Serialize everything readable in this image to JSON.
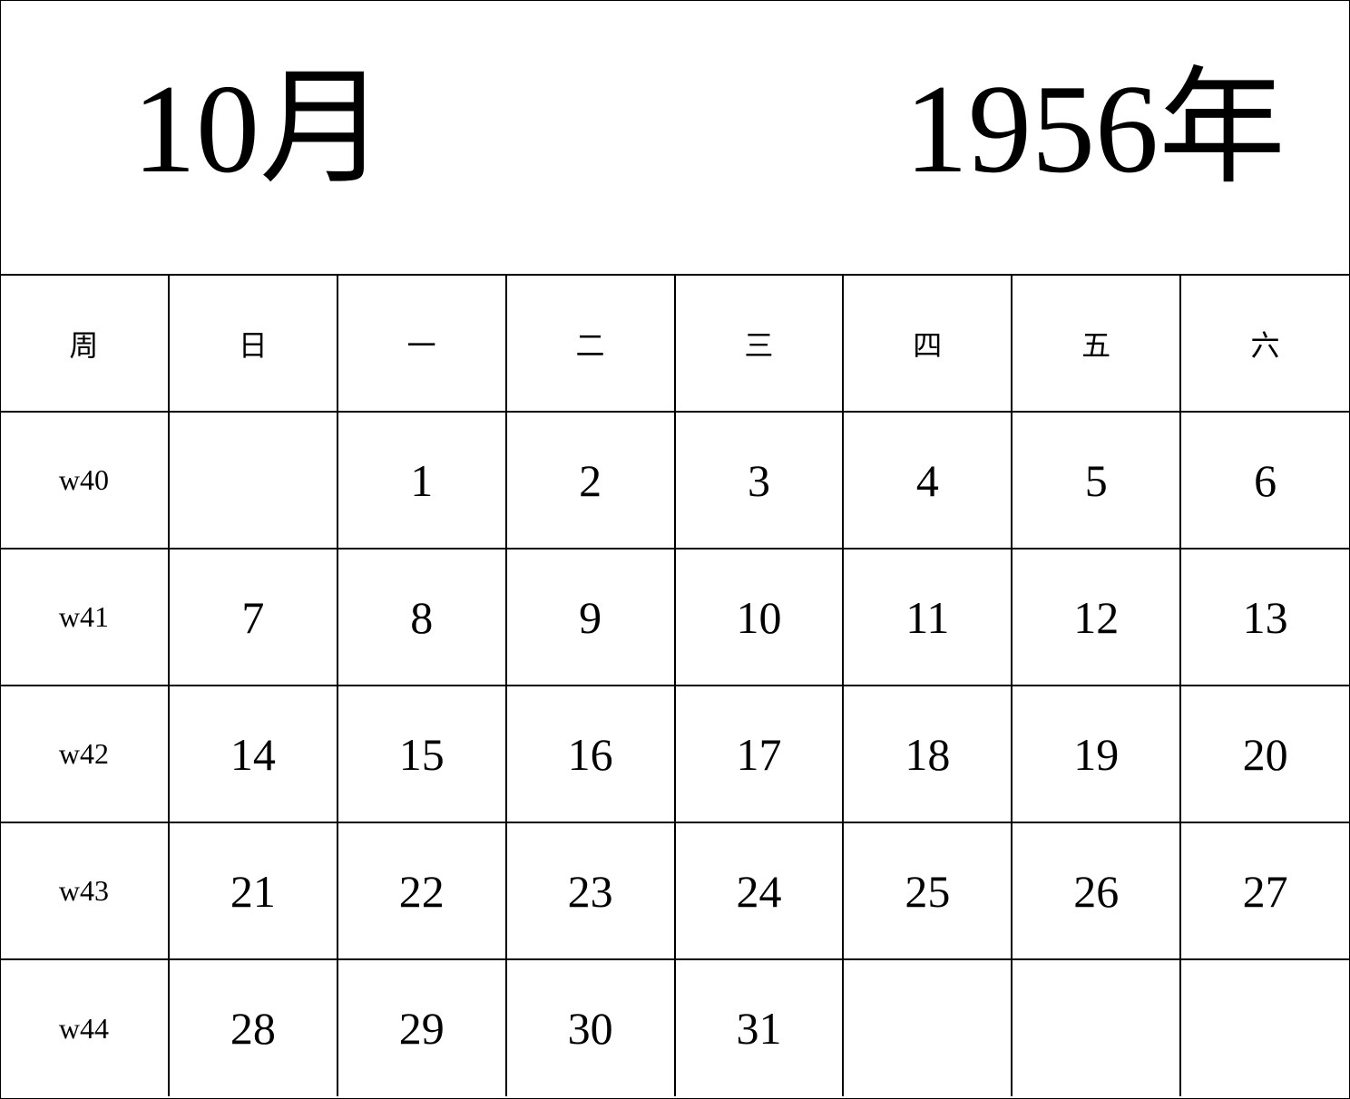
{
  "header": {
    "month": "10月",
    "year": "1956年"
  },
  "weekday_headers": [
    "周",
    "日",
    "一",
    "二",
    "三",
    "四",
    "五",
    "六"
  ],
  "weeks": [
    {
      "label": "w40",
      "days": [
        "",
        "1",
        "2",
        "3",
        "4",
        "5",
        "6"
      ]
    },
    {
      "label": "w41",
      "days": [
        "7",
        "8",
        "9",
        "10",
        "11",
        "12",
        "13"
      ]
    },
    {
      "label": "w42",
      "days": [
        "14",
        "15",
        "16",
        "17",
        "18",
        "19",
        "20"
      ]
    },
    {
      "label": "w43",
      "days": [
        "21",
        "22",
        "23",
        "24",
        "25",
        "26",
        "27"
      ]
    },
    {
      "label": "w44",
      "days": [
        "28",
        "29",
        "30",
        "31",
        "",
        "",
        ""
      ]
    }
  ]
}
